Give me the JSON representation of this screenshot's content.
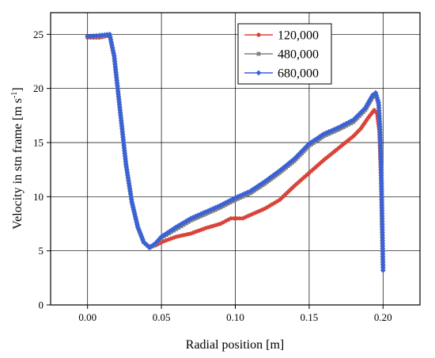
{
  "chart_data": {
    "type": "line",
    "title": "",
    "xlabel": "Radial position [m]",
    "ylabel_main": "Velocity in stn frame [m s",
    "ylabel_sup": "-1",
    "ylabel_tail": "]",
    "xlim": [
      -0.025,
      0.225
    ],
    "ylim": [
      0,
      27
    ],
    "xticks": [
      0.0,
      0.05,
      0.1,
      0.15,
      0.2
    ],
    "xtick_labels": [
      "0.00",
      "0.05",
      "0.10",
      "0.15",
      "0.20"
    ],
    "yticks": [
      0,
      5,
      10,
      15,
      20,
      25
    ],
    "ytick_labels": [
      "0",
      "5",
      "10",
      "15",
      "20",
      "25"
    ],
    "grid": true,
    "legend_position": "top-right",
    "series": [
      {
        "name": "120,000",
        "color": "#d9443a",
        "marker": "circle",
        "points": [
          [
            0.0,
            24.7
          ],
          [
            0.008,
            24.7
          ],
          [
            0.015,
            24.9
          ],
          [
            0.018,
            23.0
          ],
          [
            0.022,
            18.0
          ],
          [
            0.026,
            13.0
          ],
          [
            0.03,
            9.5
          ],
          [
            0.034,
            7.2
          ],
          [
            0.038,
            5.8
          ],
          [
            0.042,
            5.3
          ],
          [
            0.046,
            5.5
          ],
          [
            0.05,
            5.8
          ],
          [
            0.06,
            6.3
          ],
          [
            0.07,
            6.6
          ],
          [
            0.08,
            7.1
          ],
          [
            0.09,
            7.5
          ],
          [
            0.097,
            8.0
          ],
          [
            0.105,
            8.0
          ],
          [
            0.11,
            8.3
          ],
          [
            0.12,
            8.9
          ],
          [
            0.13,
            9.7
          ],
          [
            0.14,
            11.0
          ],
          [
            0.15,
            12.2
          ],
          [
            0.16,
            13.4
          ],
          [
            0.17,
            14.5
          ],
          [
            0.18,
            15.6
          ],
          [
            0.185,
            16.3
          ],
          [
            0.19,
            17.3
          ],
          [
            0.194,
            18.0
          ],
          [
            0.196,
            17.7
          ],
          [
            0.1975,
            16.0
          ],
          [
            0.1985,
            12.0
          ],
          [
            0.1993,
            7.0
          ],
          [
            0.2,
            3.2
          ]
        ]
      },
      {
        "name": "480,000",
        "color": "#808080",
        "marker": "square",
        "points": [
          [
            0.0,
            24.8
          ],
          [
            0.008,
            24.8
          ],
          [
            0.015,
            24.9
          ],
          [
            0.018,
            23.0
          ],
          [
            0.022,
            18.0
          ],
          [
            0.026,
            13.0
          ],
          [
            0.03,
            9.5
          ],
          [
            0.034,
            7.2
          ],
          [
            0.038,
            5.8
          ],
          [
            0.042,
            5.3
          ],
          [
            0.046,
            5.6
          ],
          [
            0.05,
            6.2
          ],
          [
            0.06,
            7.0
          ],
          [
            0.07,
            7.8
          ],
          [
            0.08,
            8.4
          ],
          [
            0.09,
            9.0
          ],
          [
            0.1,
            9.7
          ],
          [
            0.11,
            10.3
          ],
          [
            0.12,
            11.2
          ],
          [
            0.13,
            12.2
          ],
          [
            0.14,
            13.3
          ],
          [
            0.15,
            14.7
          ],
          [
            0.16,
            15.6
          ],
          [
            0.17,
            16.2
          ],
          [
            0.18,
            16.9
          ],
          [
            0.188,
            18.0
          ],
          [
            0.193,
            19.2
          ],
          [
            0.195,
            19.5
          ],
          [
            0.197,
            18.5
          ],
          [
            0.198,
            16.0
          ],
          [
            0.199,
            11.0
          ],
          [
            0.1995,
            7.0
          ],
          [
            0.2,
            3.5
          ]
        ]
      },
      {
        "name": "680,000",
        "color": "#3a62d6",
        "marker": "diamond",
        "points": [
          [
            0.0,
            24.8
          ],
          [
            0.008,
            24.9
          ],
          [
            0.015,
            25.0
          ],
          [
            0.018,
            23.0
          ],
          [
            0.022,
            18.0
          ],
          [
            0.026,
            13.0
          ],
          [
            0.03,
            9.5
          ],
          [
            0.034,
            7.2
          ],
          [
            0.038,
            5.8
          ],
          [
            0.042,
            5.3
          ],
          [
            0.046,
            5.7
          ],
          [
            0.05,
            6.3
          ],
          [
            0.06,
            7.2
          ],
          [
            0.07,
            8.0
          ],
          [
            0.08,
            8.6
          ],
          [
            0.09,
            9.2
          ],
          [
            0.1,
            9.9
          ],
          [
            0.11,
            10.5
          ],
          [
            0.12,
            11.4
          ],
          [
            0.13,
            12.4
          ],
          [
            0.14,
            13.5
          ],
          [
            0.15,
            14.9
          ],
          [
            0.16,
            15.8
          ],
          [
            0.17,
            16.4
          ],
          [
            0.18,
            17.1
          ],
          [
            0.188,
            18.2
          ],
          [
            0.193,
            19.4
          ],
          [
            0.195,
            19.6
          ],
          [
            0.197,
            18.7
          ],
          [
            0.198,
            16.2
          ],
          [
            0.199,
            11.2
          ],
          [
            0.1995,
            7.2
          ],
          [
            0.2,
            3.2
          ]
        ]
      }
    ]
  }
}
